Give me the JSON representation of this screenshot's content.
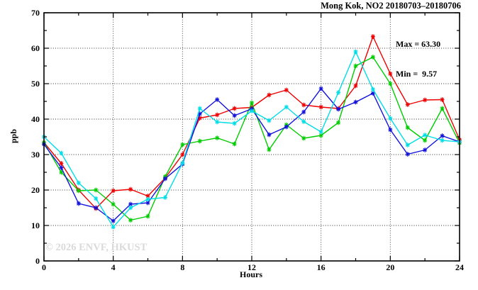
{
  "title": "Mong Kok, NO2 20180703–20180706",
  "annotations": {
    "max_label": "Max = 63.30",
    "min_label": "Min =  9.57"
  },
  "watermark": "© 2026 ENVF, HKUST",
  "chart_data": {
    "type": "line",
    "title": "Mong Kok, NO2 20180703–20180706",
    "xlabel": "Hours",
    "ylabel": "ppb",
    "xlim": [
      0,
      24
    ],
    "ylim": [
      0,
      70
    ],
    "x_major_ticks": [
      0,
      4,
      8,
      12,
      16,
      20,
      24
    ],
    "x_minor_step": 2,
    "y_major_ticks": [
      0,
      10,
      20,
      30,
      40,
      50,
      60,
      70
    ],
    "y_minor_step": 5,
    "grid_x": [
      4,
      8,
      12,
      16,
      20
    ],
    "grid_y": [
      10,
      20,
      30,
      40,
      50,
      60
    ],
    "grid_on": true,
    "legend": "none",
    "marker": "asterisk",
    "x": [
      0,
      1,
      2,
      3,
      4,
      5,
      6,
      7,
      8,
      9,
      10,
      11,
      12,
      13,
      14,
      15,
      16,
      17,
      18,
      19,
      20,
      21,
      22,
      23,
      24
    ],
    "series": [
      {
        "name": "series-red",
        "color": "#ee0000",
        "values": [
          33.4,
          27.5,
          20.0,
          14.8,
          19.8,
          20.2,
          18.3,
          23.4,
          30.0,
          40.3,
          41.2,
          43.0,
          43.3,
          46.8,
          48.2,
          44.0,
          43.4,
          43.0,
          49.4,
          63.3,
          52.8,
          44.1,
          45.4,
          45.5,
          34.2
        ]
      },
      {
        "name": "series-green",
        "color": "#00cc00",
        "values": [
          33.4,
          25.0,
          19.8,
          20.0,
          16.0,
          11.5,
          12.6,
          23.8,
          32.8,
          33.8,
          34.7,
          33.0,
          44.6,
          31.4,
          38.4,
          34.6,
          35.4,
          39.0,
          55.0,
          57.5,
          50.0,
          37.6,
          34.0,
          43.0,
          33.3
        ]
      },
      {
        "name": "series-blue",
        "color": "#1111dd",
        "values": [
          32.9,
          26.3,
          16.2,
          15.0,
          11.3,
          16.0,
          16.4,
          23.2,
          27.3,
          41.5,
          45.5,
          41.0,
          42.9,
          35.6,
          37.8,
          42.0,
          48.6,
          42.8,
          44.8,
          47.3,
          37.0,
          30.1,
          31.3,
          35.3,
          33.6
        ]
      },
      {
        "name": "series-cyan",
        "color": "#00dde6",
        "values": [
          35.0,
          30.4,
          22.0,
          17.6,
          9.57,
          15.0,
          17.4,
          17.9,
          27.6,
          43.0,
          39.2,
          38.8,
          42.3,
          39.6,
          43.4,
          39.3,
          36.4,
          47.5,
          59.0,
          48.4,
          40.2,
          32.7,
          35.5,
          34.0,
          33.6
        ]
      }
    ],
    "max_value": 63.3,
    "min_value": 9.57
  }
}
